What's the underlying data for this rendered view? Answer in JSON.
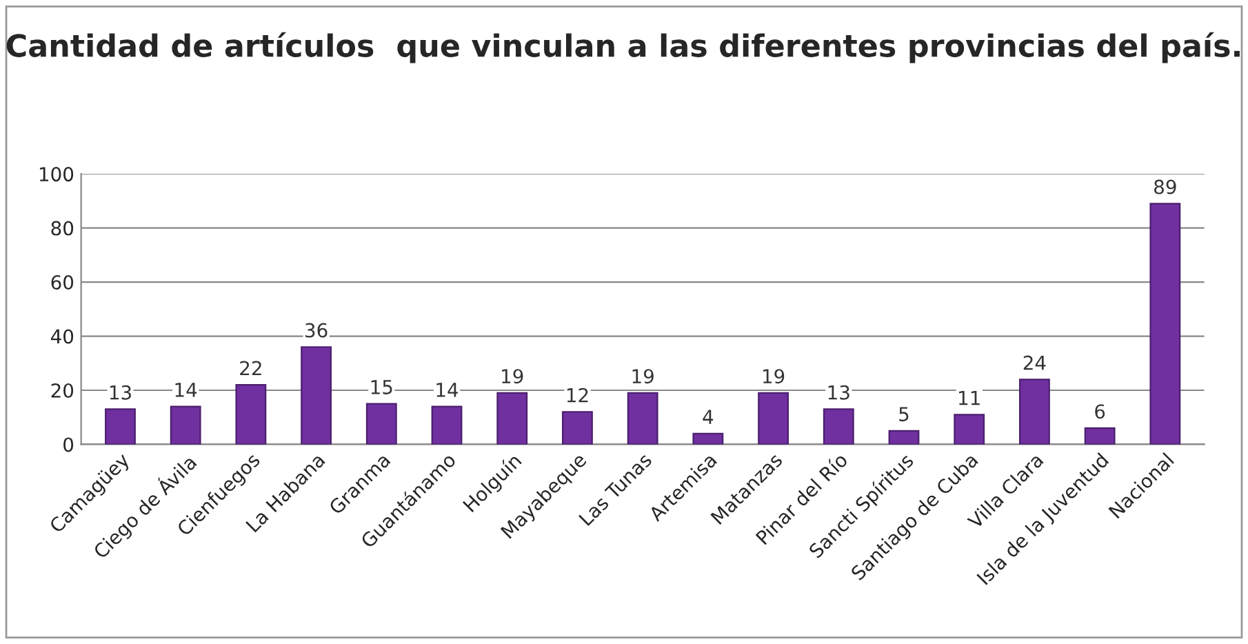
{
  "chart_data": {
    "type": "bar",
    "title": "Cantidad de artículos  que vinculan a las diferentes provincias del país.",
    "categories": [
      "Camagüey",
      "Ciego de Ávila",
      "Cienfuegos",
      "La Habana",
      "Granma",
      "Guantánamo",
      "Holguín",
      "Mayabeque",
      "Las Tunas",
      "Artemisa",
      "Matanzas",
      "Pinar del Río",
      "Sancti Spíritus",
      "Santiago de Cuba",
      "Villa Clara",
      "Isla de la Juventud",
      "Nacional"
    ],
    "values": [
      13,
      14,
      22,
      36,
      15,
      14,
      19,
      12,
      19,
      4,
      19,
      13,
      5,
      11,
      24,
      6,
      89
    ],
    "color": "#7030a0",
    "ylim": [
      0,
      100
    ],
    "yticks": [
      0,
      20,
      40,
      60,
      80,
      100
    ],
    "grid": "y",
    "data_labels": true
  }
}
